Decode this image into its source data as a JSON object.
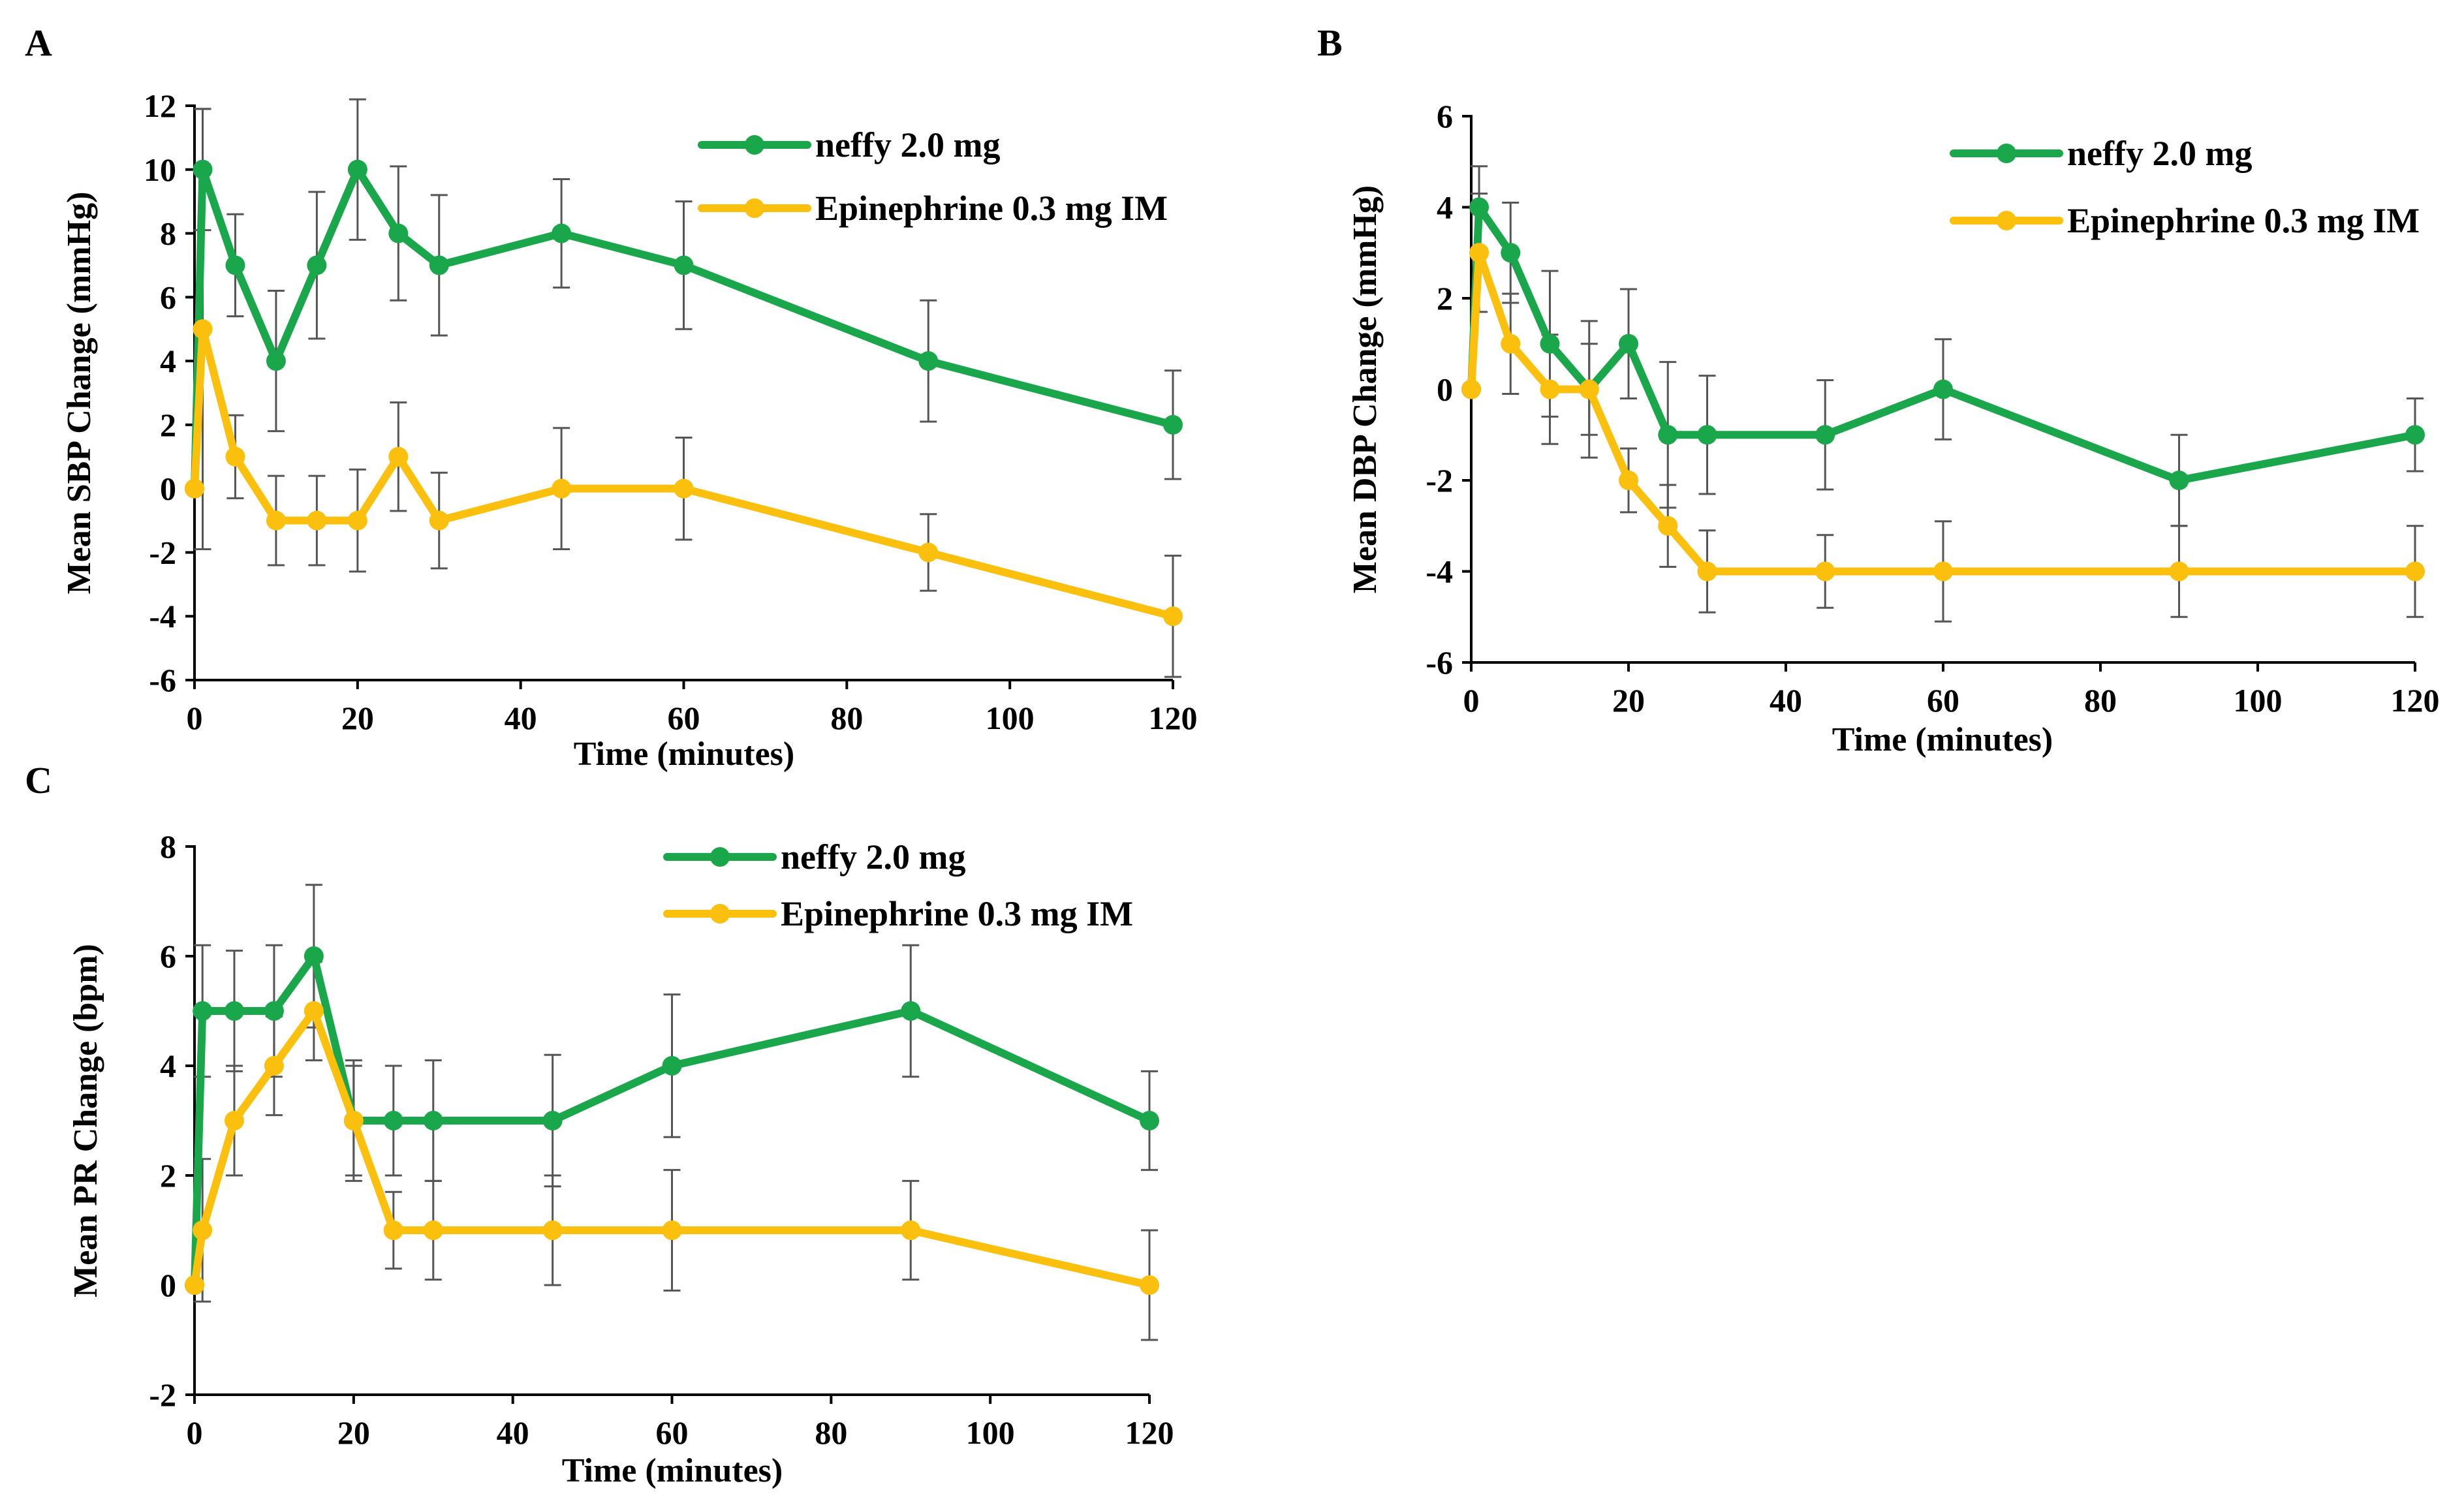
{
  "figure": {
    "colors": {
      "neffy": "#1aa64a",
      "epi": "#fbc00d",
      "axis": "#000000",
      "errorbar": "#555555"
    }
  },
  "chart_data": [
    {
      "panel": "A",
      "type": "line",
      "xlabel": "Time (minutes)",
      "ylabel": "Mean SBP Change (mmHg)",
      "xlim": [
        0,
        120
      ],
      "ylim": [
        -6,
        12
      ],
      "xticks": [
        0,
        20,
        40,
        60,
        80,
        100,
        120
      ],
      "yticks": [
        -6,
        -4,
        -2,
        0,
        2,
        4,
        6,
        8,
        10,
        12
      ],
      "legend": "top-right",
      "series": [
        {
          "name": "neffy 2.0 mg",
          "color": "#1aa64a",
          "x": [
            0,
            1,
            5,
            10,
            15,
            20,
            25,
            30,
            45,
            60,
            90,
            120
          ],
          "y": [
            0,
            10,
            7,
            4,
            7,
            10,
            8,
            7,
            8,
            7,
            4,
            2
          ],
          "err": [
            0,
            1.9,
            1.6,
            2.2,
            2.3,
            2.2,
            2.1,
            2.2,
            1.7,
            2.0,
            1.9,
            1.7
          ]
        },
        {
          "name": "Epinephrine 0.3 mg IM",
          "color": "#fbc00d",
          "x": [
            0,
            1,
            5,
            10,
            15,
            20,
            25,
            30,
            45,
            60,
            90,
            120
          ],
          "y": [
            0,
            5,
            1,
            -1,
            -1,
            -1,
            1,
            -1,
            0,
            0,
            -2,
            -4
          ],
          "err": [
            0,
            6.9,
            1.3,
            1.4,
            1.4,
            1.6,
            1.7,
            1.5,
            1.9,
            1.6,
            1.2,
            1.9
          ]
        }
      ]
    },
    {
      "panel": "B",
      "type": "line",
      "xlabel": "Time (minutes)",
      "ylabel": "Mean DBP Change (mmHg)",
      "xlim": [
        0,
        120
      ],
      "ylim": [
        -6,
        6
      ],
      "xticks": [
        0,
        20,
        40,
        60,
        80,
        100,
        120
      ],
      "yticks": [
        -6,
        -4,
        -2,
        0,
        2,
        4,
        6
      ],
      "legend": "top-right",
      "series": [
        {
          "name": "neffy 2.0 mg",
          "color": "#1aa64a",
          "x": [
            0,
            1,
            5,
            10,
            15,
            20,
            25,
            30,
            45,
            60,
            90,
            120
          ],
          "y": [
            0,
            4,
            3,
            1,
            0,
            1,
            -1,
            -1,
            -1,
            0,
            -2,
            -1
          ],
          "err": [
            0,
            0.9,
            1.1,
            1.6,
            1.5,
            1.2,
            1.6,
            1.3,
            1.2,
            1.1,
            1.0,
            0.8
          ]
        },
        {
          "name": "Epinephrine 0.3 mg IM",
          "color": "#fbc00d",
          "x": [
            0,
            1,
            5,
            10,
            15,
            20,
            25,
            30,
            45,
            60,
            90,
            120
          ],
          "y": [
            0,
            3,
            1,
            0,
            0,
            -2,
            -3,
            -4,
            -4,
            -4,
            -4,
            -4
          ],
          "err": [
            0,
            1.3,
            1.1,
            1.2,
            1.0,
            0.7,
            0.9,
            0.9,
            0.8,
            1.1,
            1.0,
            1.0
          ]
        }
      ]
    },
    {
      "panel": "C",
      "type": "line",
      "xlabel": "Time (minutes)",
      "ylabel": "Mean PR Change (bpm)",
      "xlim": [
        0,
        120
      ],
      "ylim": [
        -2,
        8
      ],
      "xticks": [
        0,
        20,
        40,
        60,
        80,
        100,
        120
      ],
      "yticks": [
        -2,
        0,
        2,
        4,
        6,
        8
      ],
      "legend": "top-center",
      "series": [
        {
          "name": "neffy 2.0 mg",
          "color": "#1aa64a",
          "x": [
            0,
            1,
            5,
            10,
            15,
            20,
            25,
            30,
            45,
            60,
            90,
            120
          ],
          "y": [
            0,
            5,
            5,
            5,
            6,
            3,
            3,
            3,
            3,
            4,
            5,
            3
          ],
          "err": [
            0,
            1.2,
            1.1,
            1.2,
            1.3,
            1.0,
            1.0,
            1.1,
            1.2,
            1.3,
            1.2,
            0.9
          ]
        },
        {
          "name": "Epinephrine 0.3 mg IM",
          "color": "#fbc00d",
          "x": [
            0,
            1,
            5,
            10,
            15,
            20,
            25,
            30,
            45,
            60,
            90,
            120
          ],
          "y": [
            0,
            1,
            3,
            4,
            5,
            3,
            1,
            1,
            1,
            1,
            1,
            0
          ],
          "err": [
            0,
            1.3,
            1.0,
            0.9,
            0.9,
            1.1,
            0.7,
            0.9,
            1.0,
            1.1,
            0.9,
            1.0
          ]
        }
      ]
    }
  ]
}
